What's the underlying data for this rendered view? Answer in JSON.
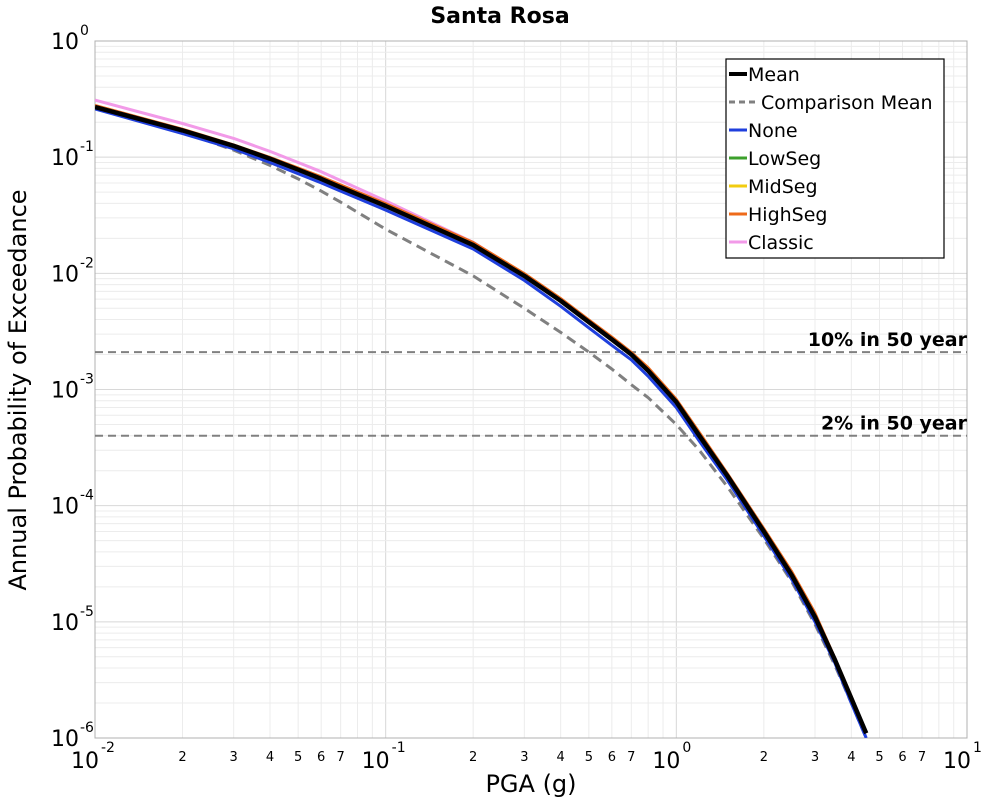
{
  "chart_data": {
    "type": "line",
    "title": "Santa Rosa",
    "xlabel": "PGA (g)",
    "ylabel": "Annual Probability of Exceedance",
    "xscale": "log",
    "yscale": "log",
    "xlim": [
      0.01,
      10
    ],
    "ylim": [
      1e-06,
      1
    ],
    "grid": true,
    "legend_position": "top-right",
    "x_major_ticks": [
      {
        "base": "10",
        "exp": "-2",
        "value": 0.01
      },
      {
        "base": "10",
        "exp": "-1",
        "value": 0.1
      },
      {
        "base": "10",
        "exp": "0",
        "value": 1
      },
      {
        "base": "10",
        "exp": "1",
        "value": 10
      }
    ],
    "y_major_ticks": [
      {
        "base": "10",
        "exp": "0",
        "value": 1
      },
      {
        "base": "10",
        "exp": "-1",
        "value": 0.1
      },
      {
        "base": "10",
        "exp": "-2",
        "value": 0.01
      },
      {
        "base": "10",
        "exp": "-3",
        "value": 0.001
      },
      {
        "base": "10",
        "exp": "-4",
        "value": 0.0001
      },
      {
        "base": "10",
        "exp": "-5",
        "value": 1e-05
      },
      {
        "base": "10",
        "exp": "-6",
        "value": 1e-06
      }
    ],
    "x_minor_tick_labels": [
      "2",
      "3",
      "4",
      "5",
      "6",
      "7"
    ],
    "x": [
      0.01,
      0.02,
      0.03,
      0.04,
      0.05,
      0.06,
      0.07,
      0.1,
      0.2,
      0.3,
      0.4,
      0.5,
      0.6,
      0.7,
      0.8,
      1.0,
      1.2,
      1.5,
      2.0,
      2.5,
      3.0,
      3.5,
      4.0,
      4.5
    ],
    "series": [
      {
        "name": "Mean",
        "color": "#000000",
        "width": 4.5,
        "dash": "",
        "values": [
          0.27,
          0.17,
          0.125,
          0.097,
          0.078,
          0.065,
          0.055,
          0.038,
          0.0175,
          0.0095,
          0.0058,
          0.0038,
          0.0027,
          0.002,
          0.00145,
          0.00078,
          0.0004,
          0.00018,
          6e-05,
          2.5e-05,
          1.1e-05,
          4.8e-06,
          2.2e-06,
          1.1e-06
        ]
      },
      {
        "name": "Comparison Mean",
        "color": "#808080",
        "width": 3,
        "dash": "10,6",
        "values": [
          0.27,
          0.165,
          0.115,
          0.085,
          0.065,
          0.051,
          0.041,
          0.024,
          0.0095,
          0.005,
          0.0031,
          0.0021,
          0.0015,
          0.0011,
          0.00085,
          0.0005,
          0.0003,
          0.000145,
          5.2e-05,
          2.2e-05,
          9.5e-06,
          4.3e-06,
          2e-06,
          1e-06
        ]
      },
      {
        "name": "None",
        "color": "#1f3fdd",
        "width": 3,
        "dash": "",
        "values": [
          0.26,
          0.16,
          0.118,
          0.09,
          0.072,
          0.06,
          0.051,
          0.035,
          0.0162,
          0.0087,
          0.0052,
          0.0034,
          0.0024,
          0.0018,
          0.0013,
          0.0007,
          0.00036,
          0.000165,
          5.5e-05,
          2.3e-05,
          1e-05,
          4.5e-06,
          2e-06,
          1e-06
        ]
      },
      {
        "name": "LowSeg",
        "color": "#3ca02c",
        "width": 2.5,
        "dash": "",
        "values": [
          0.27,
          0.17,
          0.125,
          0.097,
          0.078,
          0.065,
          0.055,
          0.038,
          0.0175,
          0.0095,
          0.0058,
          0.0038,
          0.0027,
          0.002,
          0.00145,
          0.00078,
          0.0004,
          0.00018,
          6e-05,
          2.5e-05,
          1.1e-05,
          4.8e-06,
          2.2e-06,
          1.1e-06
        ]
      },
      {
        "name": "MidSeg",
        "color": "#f2cc10",
        "width": 2.5,
        "dash": "",
        "values": [
          0.27,
          0.17,
          0.125,
          0.097,
          0.078,
          0.065,
          0.055,
          0.038,
          0.0175,
          0.0095,
          0.0058,
          0.0038,
          0.0027,
          0.002,
          0.00145,
          0.00078,
          0.0004,
          0.00018,
          6e-05,
          2.5e-05,
          1.1e-05,
          4.8e-06,
          2.2e-06,
          1.1e-06
        ]
      },
      {
        "name": "HighSeg",
        "color": "#ee6a1a",
        "width": 2.5,
        "dash": "",
        "values": [
          0.28,
          0.175,
          0.128,
          0.1,
          0.081,
          0.068,
          0.058,
          0.04,
          0.0185,
          0.01,
          0.0061,
          0.004,
          0.00285,
          0.0021,
          0.00155,
          0.00083,
          0.00043,
          0.00019,
          6.4e-05,
          2.7e-05,
          1.2e-05,
          5e-06,
          2.3e-06,
          1.1e-06
        ]
      },
      {
        "name": "Classic",
        "color": "#f29ae8",
        "width": 3,
        "dash": "",
        "values": [
          0.31,
          0.195,
          0.145,
          0.112,
          0.09,
          0.075,
          0.063,
          0.042,
          0.0185,
          0.0098,
          0.0059,
          0.0038,
          0.0027,
          0.002,
          0.00145,
          0.00078,
          0.0004,
          0.00018,
          6e-05,
          2.5e-05,
          1.1e-05,
          4.8e-06,
          2.2e-06,
          1.1e-06
        ]
      }
    ],
    "reference_lines": [
      {
        "label": "10% in 50 year",
        "y": 0.0021
      },
      {
        "label": "2% in 50 year",
        "y": 0.0004
      }
    ]
  }
}
